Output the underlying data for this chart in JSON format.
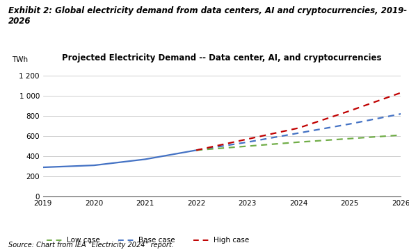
{
  "title": "Projected Electricity Demand -- Data center, AI, and cryptocurrencies",
  "exhibit_line1": "Exhibit 2: Global electricity demand from data centers, AI and cryptocurrencies, 2019-",
  "exhibit_line2": "2026",
  "source_text": "Source: Chart from IEA “Electricity 2024” report.",
  "ylabel": "TWh",
  "years": [
    2019,
    2020,
    2021,
    2022,
    2023,
    2024,
    2025,
    2026
  ],
  "base_case_solid": {
    "x": [
      2019,
      2020,
      2021,
      2022
    ],
    "y": [
      290,
      310,
      370,
      460
    ]
  },
  "base_case_dashed": {
    "x": [
      2022,
      2023,
      2024,
      2025,
      2026
    ],
    "y": [
      460,
      540,
      630,
      720,
      820
    ]
  },
  "low_case": {
    "x": [
      2022,
      2023,
      2024,
      2025,
      2026
    ],
    "y": [
      460,
      500,
      540,
      575,
      610
    ]
  },
  "high_case": {
    "x": [
      2022,
      2023,
      2024,
      2025,
      2026
    ],
    "y": [
      460,
      570,
      680,
      850,
      1030
    ]
  },
  "colors": {
    "base": "#4472C4",
    "low": "#70AD47",
    "high": "#C00000"
  },
  "ylim": [
    0,
    1300
  ],
  "yticks": [
    0,
    200,
    400,
    600,
    800,
    1000,
    1200
  ],
  "ytick_labels": [
    "0",
    "200",
    "400",
    "600",
    "800",
    "1 000",
    "1 200"
  ],
  "grid_color": "#BBBBBB",
  "background_color": "#FFFFFF",
  "chart_title_fontsize": 8.5,
  "exhibit_fontsize": 8.5,
  "axis_fontsize": 7.5,
  "legend_fontsize": 7.5,
  "source_fontsize": 7.0
}
